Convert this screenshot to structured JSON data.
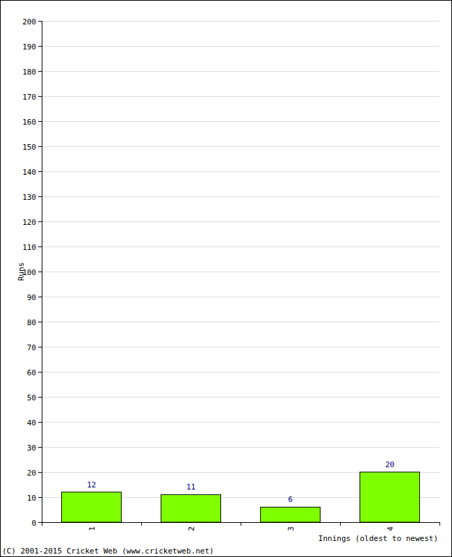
{
  "chart_data": {
    "type": "bar",
    "categories": [
      "1",
      "2",
      "3",
      "4"
    ],
    "values": [
      12,
      11,
      6,
      20
    ],
    "color": "#80ff00",
    "x_label": "Innings (oldest to newest)",
    "y_label": "Runs",
    "annotations": [
      "(C) 2001-2015 Cricket Web (www.cricketweb.net)"
    ],
    "ylim": [
      0,
      200
    ],
    "yticks": [
      0,
      10,
      20,
      30,
      40,
      50,
      60,
      70,
      80,
      90,
      100,
      110,
      120,
      130,
      140,
      150,
      160,
      170,
      180,
      190,
      200
    ],
    "grid": true,
    "data_labels": true
  }
}
